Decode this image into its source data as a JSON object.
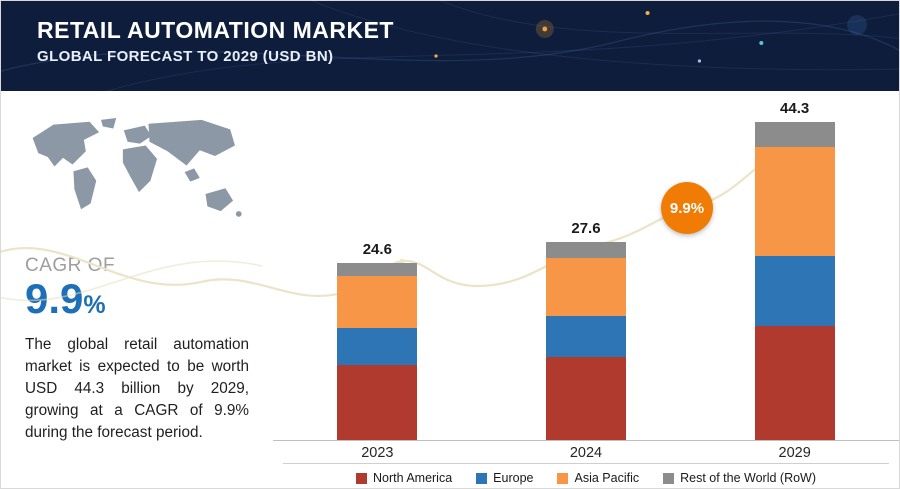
{
  "header": {
    "title": "RETAIL AUTOMATION MARKET",
    "subtitle": "GLOBAL FORECAST TO 2029 (USD BN)"
  },
  "sidebar": {
    "cagr_label": "CAGR OF",
    "cagr_value": "9.9",
    "cagr_percent": "%",
    "description": "The global retail automation market is expected to be worth USD 44.3 billion by 2029, growing at a CAGR of 9.9% during the forecast period."
  },
  "chart_data": {
    "type": "bar",
    "stacked": true,
    "title": "Retail Automation Market",
    "subtitle": "Global Forecast to 2029 (USD BN)",
    "categories": [
      "2023",
      "2024",
      "2029"
    ],
    "series": [
      {
        "name": "North America",
        "color": "#b03a2e",
        "values": [
          10.4,
          11.6,
          15.9
        ]
      },
      {
        "name": "Europe",
        "color": "#2e75b6",
        "values": [
          5.2,
          5.7,
          9.7
        ]
      },
      {
        "name": "Asia Pacific",
        "color": "#f79646",
        "values": [
          7.2,
          8.1,
          15.2
        ]
      },
      {
        "name": "Rest of the World (RoW)",
        "color": "#8c8c8c",
        "values": [
          1.8,
          2.2,
          3.5
        ]
      }
    ],
    "totals": [
      "24.6",
      "27.6",
      "44.3"
    ],
    "annotation": "9.9%",
    "xlabel": "",
    "ylabel": "",
    "ylim": [
      0,
      46
    ],
    "grid": false,
    "legend_position": "bottom"
  },
  "colors": {
    "accent_orange": "#f07c05",
    "cagr_blue": "#1d70b8",
    "header_navy": "#0e1d3c",
    "trend_line": "#ece3c8"
  }
}
